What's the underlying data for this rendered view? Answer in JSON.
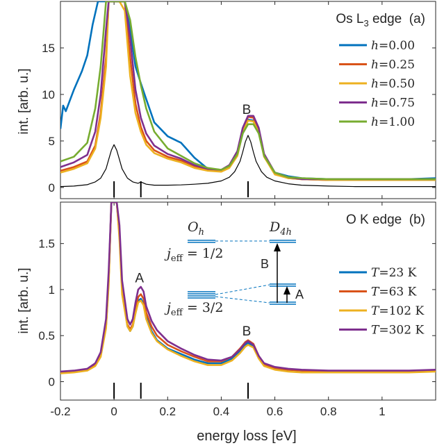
{
  "figure": {
    "xlabel": "energy loss [eV]"
  },
  "chart_data": [
    {
      "type": "line",
      "panel": "a",
      "title": "Os L₃ edge (a)",
      "title_parts": {
        "pre": "Os L",
        "sub": "3",
        "post": " edge  (a)"
      },
      "xlabel": "energy loss [eV]",
      "ylabel": "int. [arb. u.]",
      "xlim": [
        -0.2,
        1.2
      ],
      "ylim": [
        -1.2,
        20
      ],
      "yticks": [
        0,
        5,
        10,
        15
      ],
      "ytick_labels": [
        "0",
        "5",
        "10",
        "15"
      ],
      "peak_label": {
        "text": "B",
        "x": 0.5,
        "y": 8.2
      },
      "marker_ticks": [
        0,
        0.1,
        0.5
      ],
      "legend_position": "top-right",
      "series": [
        {
          "name": "h=0.00",
          "legend": {
            "var": "h",
            "rest": "=0.00"
          },
          "color": "#0072BD",
          "x": [
            -0.2,
            -0.19,
            -0.18,
            -0.15,
            -0.12,
            -0.1,
            -0.08,
            -0.06,
            -0.04,
            -0.02,
            -0.01,
            0,
            0.01,
            0.02,
            0.04,
            0.06,
            0.08,
            0.1,
            0.12,
            0.15,
            0.2,
            0.25,
            0.3,
            0.35,
            0.4,
            0.43,
            0.46,
            0.48,
            0.5,
            0.52,
            0.54,
            0.56,
            0.6,
            0.65,
            0.7,
            0.8,
            0.9,
            1.0,
            1.1,
            1.2
          ],
          "y": [
            6.3,
            8.8,
            8.2,
            10.5,
            12.5,
            14.2,
            17.5,
            20,
            20,
            20,
            20,
            20,
            20,
            20,
            20,
            17,
            13,
            11.2,
            9.5,
            7,
            5.5,
            4.8,
            3.2,
            2,
            1.9,
            2.2,
            3.5,
            5.8,
            7.3,
            7.2,
            6,
            3.5,
            1.6,
            1.2,
            1.0,
            0.9,
            0.9,
            0.9,
            0.9,
            1.0
          ]
        },
        {
          "name": "h=0.25",
          "legend": {
            "var": "h",
            "rest": "=0.25"
          },
          "color": "#D95319",
          "x": [
            -0.2,
            -0.15,
            -0.1,
            -0.07,
            -0.05,
            -0.03,
            -0.02,
            -0.01,
            0,
            0.01,
            0.02,
            0.04,
            0.06,
            0.08,
            0.1,
            0.12,
            0.15,
            0.2,
            0.25,
            0.3,
            0.35,
            0.4,
            0.43,
            0.46,
            0.48,
            0.5,
            0.52,
            0.54,
            0.56,
            0.6,
            0.65,
            0.7,
            0.8,
            0.9,
            1.0,
            1.1,
            1.2
          ],
          "y": [
            1.8,
            2.2,
            2.8,
            4.5,
            8,
            14,
            20,
            20,
            20,
            20,
            20,
            20,
            14,
            9,
            6.5,
            5,
            4,
            3.3,
            2.9,
            2.3,
            1.9,
            1.8,
            2.2,
            3.6,
            6.2,
            7.6,
            7.5,
            6.2,
            3.5,
            1.5,
            1.0,
            0.9,
            0.8,
            0.8,
            0.8,
            0.8,
            0.8
          ]
        },
        {
          "name": "h=0.50",
          "legend": {
            "var": "h",
            "rest": "=0.50"
          },
          "color": "#EDB120",
          "x": [
            -0.2,
            -0.15,
            -0.1,
            -0.07,
            -0.05,
            -0.03,
            -0.02,
            -0.01,
            0,
            0.01,
            0.02,
            0.04,
            0.06,
            0.08,
            0.1,
            0.12,
            0.15,
            0.2,
            0.25,
            0.3,
            0.35,
            0.4,
            0.43,
            0.46,
            0.48,
            0.5,
            0.52,
            0.54,
            0.56,
            0.6,
            0.65,
            0.7,
            0.8,
            0.9,
            1.0,
            1.1,
            1.2
          ],
          "y": [
            1.6,
            2.0,
            2.6,
            4.2,
            7.5,
            13,
            20,
            20,
            20,
            20,
            20,
            19,
            12,
            8,
            6,
            4.6,
            3.7,
            3.1,
            2.7,
            2.1,
            1.8,
            1.7,
            2.1,
            3.4,
            5.9,
            7.2,
            7.1,
            5.9,
            3.3,
            1.4,
            1.0,
            0.9,
            0.8,
            0.8,
            0.8,
            0.8,
            0.8
          ]
        },
        {
          "name": "h=0.75",
          "legend": {
            "var": "h",
            "rest": "=0.75"
          },
          "color": "#7E2F8E",
          "x": [
            -0.2,
            -0.15,
            -0.1,
            -0.07,
            -0.05,
            -0.03,
            -0.02,
            -0.01,
            0,
            0.01,
            0.02,
            0.04,
            0.06,
            0.08,
            0.1,
            0.12,
            0.15,
            0.2,
            0.25,
            0.3,
            0.35,
            0.4,
            0.43,
            0.46,
            0.48,
            0.5,
            0.52,
            0.54,
            0.56,
            0.6,
            0.65,
            0.7,
            0.8,
            0.9,
            1.0,
            1.1,
            1.2
          ],
          "y": [
            2.2,
            2.7,
            3.5,
            6,
            10,
            17,
            20,
            20,
            20,
            20,
            20,
            20,
            16,
            10.5,
            7.5,
            5.8,
            4.5,
            3.6,
            3.1,
            2.4,
            2.0,
            1.9,
            2.4,
            3.9,
            6.4,
            7.7,
            7.7,
            6.4,
            3.6,
            1.6,
            1.1,
            0.9,
            0.9,
            0.9,
            0.9,
            0.9,
            0.9
          ]
        },
        {
          "name": "h=1.00",
          "legend": {
            "var": "h",
            "rest": "=1.00"
          },
          "color": "#77AC30",
          "x": [
            -0.2,
            -0.15,
            -0.1,
            -0.07,
            -0.05,
            -0.03,
            -0.02,
            -0.01,
            0,
            0.01,
            0.02,
            0.04,
            0.06,
            0.08,
            0.1,
            0.12,
            0.15,
            0.2,
            0.25,
            0.3,
            0.35,
            0.4,
            0.43,
            0.46,
            0.48,
            0.5,
            0.52,
            0.54,
            0.56,
            0.6,
            0.65,
            0.7,
            0.8,
            0.9,
            1.0,
            1.1,
            1.2
          ],
          "y": [
            2.8,
            3.3,
            4.8,
            8.5,
            13,
            20,
            20,
            20,
            20,
            20,
            20,
            20,
            18,
            14,
            11,
            8.5,
            6,
            4.2,
            3.4,
            2.6,
            2.1,
            1.9,
            2.3,
            3.6,
            5.8,
            6.8,
            6.8,
            5.8,
            3.4,
            1.6,
            1.1,
            1.0,
            0.9,
            0.9,
            0.9,
            0.9,
            0.9
          ]
        },
        {
          "name": "",
          "color": "#000000",
          "model_curve": true,
          "x": [
            -0.2,
            -0.15,
            -0.1,
            -0.07,
            -0.05,
            -0.03,
            -0.02,
            -0.01,
            0,
            0.01,
            0.02,
            0.03,
            0.05,
            0.07,
            0.09,
            0.1,
            0.12,
            0.15,
            0.2,
            0.25,
            0.3,
            0.35,
            0.4,
            0.43,
            0.45,
            0.47,
            0.48,
            0.49,
            0.5,
            0.51,
            0.52,
            0.53,
            0.55,
            0.57,
            0.6,
            0.65,
            0.7,
            0.8,
            0.9,
            1.0,
            1.1,
            1.2
          ],
          "y": [
            0.1,
            0.15,
            0.3,
            0.6,
            1.0,
            2.0,
            3.0,
            4.0,
            4.6,
            4.0,
            3.0,
            2.0,
            1.0,
            0.6,
            0.45,
            0.6,
            0.35,
            0.25,
            0.25,
            0.28,
            0.35,
            0.45,
            0.7,
            1.1,
            1.7,
            2.8,
            3.8,
            4.9,
            5.6,
            4.9,
            3.8,
            2.8,
            1.7,
            1.1,
            0.7,
            0.4,
            0.25,
            0.15,
            0.1,
            0.1,
            0.1,
            0.1
          ]
        }
      ]
    },
    {
      "type": "line",
      "panel": "b",
      "title": "O K edge  (b)",
      "xlabel": "energy loss [eV]",
      "ylabel": "int. [arb. u.]",
      "xlim": [
        -0.2,
        1.2
      ],
      "ylim": [
        -0.2,
        1.95
      ],
      "xticks": [
        -0.2,
        0,
        0.2,
        0.4,
        0.6,
        0.8,
        1
      ],
      "xtick_labels": [
        "-0.2",
        "0",
        "0.2",
        "0.4",
        "0.6",
        "0.8",
        "1"
      ],
      "yticks": [
        0,
        0.5,
        1,
        1.5
      ],
      "ytick_labels": [
        "0",
        "0.5",
        "1",
        "1.5"
      ],
      "peak_labels": [
        {
          "text": "A",
          "x": 0.1,
          "y": 1.08
        },
        {
          "text": "B",
          "x": 0.5,
          "y": 0.5
        }
      ],
      "marker_ticks": [
        0,
        0.1,
        0.5
      ],
      "legend_position": "right",
      "series": [
        {
          "name": "T=23 K",
          "legend": {
            "var": "T",
            "rest": "=23 K"
          },
          "color": "#0072BD",
          "x": [
            -0.2,
            -0.15,
            -0.1,
            -0.07,
            -0.05,
            -0.03,
            -0.02,
            -0.01,
            0,
            0.01,
            0.02,
            0.03,
            0.05,
            0.06,
            0.07,
            0.08,
            0.09,
            0.1,
            0.11,
            0.12,
            0.14,
            0.16,
            0.2,
            0.25,
            0.3,
            0.35,
            0.4,
            0.44,
            0.47,
            0.49,
            0.5,
            0.52,
            0.54,
            0.56,
            0.6,
            0.65,
            0.7,
            0.8,
            0.9,
            1.0,
            1.1,
            1.2
          ],
          "y": [
            0.1,
            0.11,
            0.13,
            0.18,
            0.28,
            0.6,
            1.1,
            1.95,
            1.95,
            1.95,
            1.6,
            1.0,
            0.6,
            0.55,
            0.6,
            0.75,
            0.88,
            0.9,
            0.85,
            0.7,
            0.55,
            0.45,
            0.36,
            0.3,
            0.24,
            0.2,
            0.2,
            0.25,
            0.33,
            0.4,
            0.42,
            0.38,
            0.26,
            0.18,
            0.14,
            0.13,
            0.12,
            0.11,
            0.11,
            0.11,
            0.11,
            0.12
          ]
        },
        {
          "name": "T=63 K",
          "legend": {
            "var": "T",
            "rest": "=63 K"
          },
          "color": "#D95319",
          "x": [
            -0.2,
            -0.15,
            -0.1,
            -0.07,
            -0.05,
            -0.03,
            -0.02,
            -0.01,
            0,
            0.01,
            0.02,
            0.03,
            0.05,
            0.06,
            0.07,
            0.08,
            0.09,
            0.1,
            0.11,
            0.12,
            0.14,
            0.16,
            0.2,
            0.25,
            0.3,
            0.35,
            0.4,
            0.44,
            0.47,
            0.49,
            0.5,
            0.52,
            0.54,
            0.56,
            0.6,
            0.65,
            0.7,
            0.8,
            0.9,
            1.0,
            1.1,
            1.2
          ],
          "y": [
            0.1,
            0.11,
            0.13,
            0.18,
            0.28,
            0.6,
            1.1,
            1.95,
            1.95,
            1.95,
            1.6,
            1.0,
            0.62,
            0.57,
            0.62,
            0.78,
            0.92,
            0.95,
            0.9,
            0.75,
            0.6,
            0.5,
            0.4,
            0.33,
            0.27,
            0.22,
            0.22,
            0.27,
            0.36,
            0.43,
            0.45,
            0.41,
            0.28,
            0.19,
            0.15,
            0.13,
            0.12,
            0.11,
            0.11,
            0.11,
            0.11,
            0.12
          ]
        },
        {
          "name": "T=102 K",
          "legend": {
            "var": "T",
            "rest": "=102 K"
          },
          "color": "#EDB120",
          "x": [
            -0.2,
            -0.15,
            -0.1,
            -0.07,
            -0.05,
            -0.03,
            -0.02,
            -0.01,
            0,
            0.01,
            0.02,
            0.03,
            0.05,
            0.06,
            0.07,
            0.08,
            0.09,
            0.1,
            0.11,
            0.12,
            0.14,
            0.16,
            0.2,
            0.25,
            0.3,
            0.35,
            0.4,
            0.44,
            0.47,
            0.49,
            0.5,
            0.52,
            0.54,
            0.56,
            0.6,
            0.65,
            0.7,
            0.8,
            0.9,
            1.0,
            1.1,
            1.2
          ],
          "y": [
            0.09,
            0.1,
            0.12,
            0.17,
            0.27,
            0.58,
            1.05,
            1.95,
            1.95,
            1.95,
            1.55,
            0.95,
            0.6,
            0.55,
            0.6,
            0.74,
            0.86,
            0.88,
            0.83,
            0.68,
            0.53,
            0.44,
            0.35,
            0.28,
            0.22,
            0.18,
            0.18,
            0.23,
            0.31,
            0.38,
            0.4,
            0.37,
            0.25,
            0.17,
            0.13,
            0.11,
            0.1,
            0.1,
            0.1,
            0.1,
            0.1,
            0.11
          ]
        },
        {
          "name": "T=302 K",
          "legend": {
            "var": "T",
            "rest": "=302 K"
          },
          "color": "#7E2F8E",
          "x": [
            -0.2,
            -0.15,
            -0.1,
            -0.07,
            -0.05,
            -0.03,
            -0.02,
            -0.01,
            0,
            0.01,
            0.02,
            0.03,
            0.05,
            0.06,
            0.07,
            0.08,
            0.09,
            0.1,
            0.11,
            0.12,
            0.14,
            0.16,
            0.2,
            0.25,
            0.3,
            0.35,
            0.4,
            0.44,
            0.47,
            0.49,
            0.5,
            0.52,
            0.54,
            0.56,
            0.6,
            0.65,
            0.7,
            0.8,
            0.9,
            1.0,
            1.1,
            1.2
          ],
          "y": [
            0.11,
            0.12,
            0.14,
            0.2,
            0.32,
            0.68,
            1.2,
            1.95,
            1.95,
            1.95,
            1.7,
            1.1,
            0.68,
            0.62,
            0.68,
            0.86,
            1.0,
            1.03,
            0.98,
            0.82,
            0.66,
            0.56,
            0.44,
            0.36,
            0.29,
            0.24,
            0.23,
            0.27,
            0.35,
            0.42,
            0.44,
            0.4,
            0.28,
            0.2,
            0.16,
            0.14,
            0.13,
            0.12,
            0.12,
            0.12,
            0.12,
            0.13
          ]
        }
      ],
      "inset": {
        "oh_label": {
          "var": "O",
          "sub": "h"
        },
        "d4h_label": {
          "var": "D",
          "sub": "4h"
        },
        "jeff_half": {
          "var": "j",
          "sub": "eff",
          "rest": " = 1/2"
        },
        "jeff_three_half": {
          "var": "j",
          "sub": "eff",
          "rest": " = 3/2"
        },
        "arrow_b_label": "B",
        "arrow_a_label": "A",
        "level_color": "#0072BD"
      }
    }
  ]
}
